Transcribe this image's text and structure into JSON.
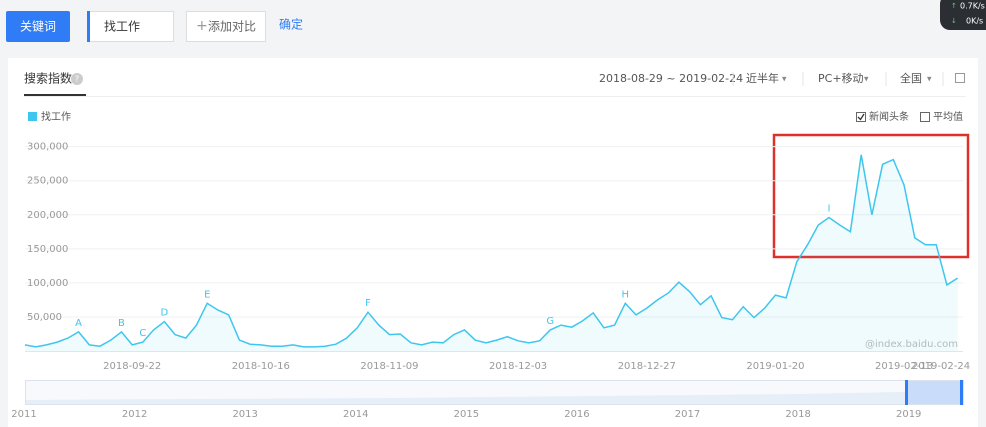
{
  "toolbar": {
    "keyword_button": "关键词",
    "search_term": "找工作",
    "add_compare": "添加对比",
    "confirm": "确定"
  },
  "network": {
    "up": "0.7K/s",
    "down": "0K/s"
  },
  "panel": {
    "tab": "搜索指数",
    "date_range": "2018-08-29 ~ 2019-02-24",
    "period": "近半年",
    "device": "PC+移动",
    "region": "全国"
  },
  "checkboxes": [
    {
      "label": "新闻头条",
      "checked": true
    },
    {
      "label": "平均值",
      "checked": false
    }
  ],
  "watermark": "@index.baidu.com",
  "chart_data": {
    "type": "line",
    "x": [
      "2018-09-02",
      "2018-09-04",
      "2018-09-06",
      "2018-09-08",
      "2018-09-10",
      "2018-09-12",
      "2018-09-14",
      "2018-09-16",
      "2018-09-18",
      "2018-09-20",
      "2018-09-22",
      "2018-09-24",
      "2018-09-26",
      "2018-09-28",
      "2018-09-30",
      "2018-10-02",
      "2018-10-04",
      "2018-10-06",
      "2018-10-08",
      "2018-10-10",
      "2018-10-12",
      "2018-10-14",
      "2018-10-16",
      "2018-10-18",
      "2018-10-20",
      "2018-10-22",
      "2018-10-24",
      "2018-10-26",
      "2018-10-28",
      "2018-10-30",
      "2018-11-01",
      "2018-11-03",
      "2018-11-05",
      "2018-11-07",
      "2018-11-09",
      "2018-11-11",
      "2018-11-13",
      "2018-11-15",
      "2018-11-17",
      "2018-11-19",
      "2018-11-21",
      "2018-11-23",
      "2018-11-25",
      "2018-11-27",
      "2018-11-29",
      "2018-12-01",
      "2018-12-03",
      "2018-12-05",
      "2018-12-07",
      "2018-12-09",
      "2018-12-11",
      "2018-12-13",
      "2018-12-15",
      "2018-12-17",
      "2018-12-19",
      "2018-12-21",
      "2018-12-23",
      "2018-12-25",
      "2018-12-27",
      "2018-12-29",
      "2018-12-31",
      "2019-01-02",
      "2019-01-04",
      "2019-01-06",
      "2019-01-08",
      "2019-01-10",
      "2019-01-12",
      "2019-01-14",
      "2019-01-16",
      "2019-01-18",
      "2019-01-20",
      "2019-01-22",
      "2019-01-24",
      "2019-01-26",
      "2019-01-28",
      "2019-01-30",
      "2019-02-01",
      "2019-02-03",
      "2019-02-05",
      "2019-02-07",
      "2019-02-09",
      "2019-02-11",
      "2019-02-13",
      "2019-02-15",
      "2019-02-17",
      "2019-02-19",
      "2019-02-21",
      "2019-02-23"
    ],
    "series": [
      {
        "name": "找工作",
        "color": "#3ec6ee",
        "values": [
          9000,
          6000,
          9000,
          13000,
          19000,
          28000,
          9000,
          7000,
          16000,
          28000,
          9000,
          13000,
          31000,
          43000,
          24000,
          19000,
          38000,
          70000,
          60000,
          53000,
          16000,
          10000,
          9000,
          7000,
          7000,
          9000,
          6000,
          6000,
          7000,
          10000,
          19000,
          34000,
          57000,
          38000,
          24000,
          25000,
          12000,
          9000,
          13000,
          12000,
          24000,
          31000,
          16000,
          12000,
          16000,
          21000,
          15000,
          12000,
          15000,
          31000,
          38000,
          35000,
          44000,
          56000,
          34000,
          38000,
          70000,
          53000,
          63000,
          75000,
          85000,
          101000,
          87000,
          68000,
          81000,
          49000,
          46000,
          65000,
          49000,
          63000,
          82000,
          78000,
          131000,
          156000,
          185000,
          196000,
          185000,
          175000,
          288000,
          200000,
          274000,
          281000,
          244000,
          166000,
          156000,
          156000,
          97000,
          107000
        ]
      }
    ],
    "xlim": [
      "2018-09-02",
      "2019-02-24"
    ],
    "xticks": [
      "2018-09-22",
      "2018-10-16",
      "2018-11-09",
      "2018-12-03",
      "2018-12-27",
      "2019-01-20",
      "2019-02-13",
      "2019-02-24"
    ],
    "ylim": [
      0,
      320000
    ],
    "yticks": [
      {
        "value": 50000,
        "label": "50,000"
      },
      {
        "value": 100000,
        "label": "100,000"
      },
      {
        "value": 150000,
        "label": "150,000"
      },
      {
        "value": 200000,
        "label": "200,000"
      },
      {
        "value": 250000,
        "label": "250,000"
      },
      {
        "value": 300000,
        "label": "300,000"
      }
    ],
    "grid": true,
    "annotations": [
      {
        "text": "A",
        "x": "2018-09-12"
      },
      {
        "text": "B",
        "x": "2018-09-20"
      },
      {
        "text": "C",
        "x": "2018-09-24"
      },
      {
        "text": "D",
        "x": "2018-09-28"
      },
      {
        "text": "E",
        "x": "2018-10-06"
      },
      {
        "text": "F",
        "x": "2018-11-05"
      },
      {
        "text": "G",
        "x": "2018-12-09"
      },
      {
        "text": "H",
        "x": "2018-12-23"
      },
      {
        "text": "I",
        "x": "2019-01-30"
      }
    ]
  },
  "navigator": {
    "years": [
      "2011",
      "2012",
      "2013",
      "2014",
      "2015",
      "2016",
      "2017",
      "2018",
      "2019"
    ]
  }
}
